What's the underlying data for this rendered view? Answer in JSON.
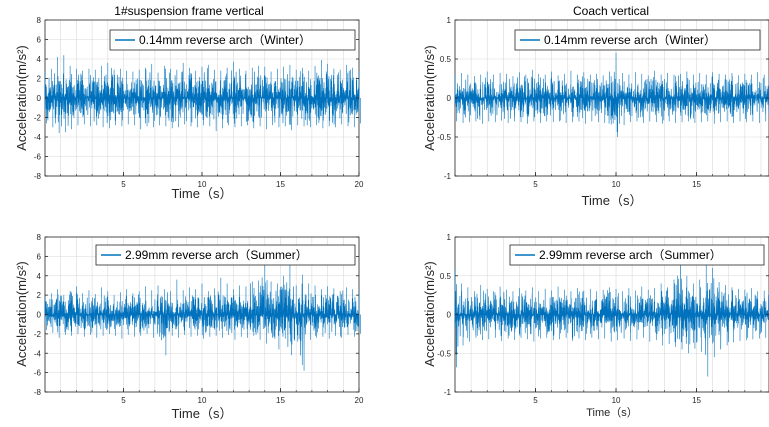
{
  "colors": {
    "signal": "#0072BD",
    "axes": "#262626",
    "grid": "#d9d9d9",
    "background": "#ffffff"
  },
  "chart_data": [
    {
      "type": "line",
      "title": "1#suspension frame vertical",
      "xlabel": "Time（s）",
      "ylabel": "Acceleration(m/s²)",
      "xlim": [
        0,
        20
      ],
      "ylim": [
        -8,
        8
      ],
      "xticks": [
        5,
        10,
        15,
        20
      ],
      "yticks": [
        -8,
        -6,
        -4,
        -2,
        0,
        2,
        4,
        6,
        8
      ],
      "grid": true,
      "legend_position": "top-right",
      "series": [
        {
          "name": "0.14mm reverse arch（Winter）",
          "x": [
            0.0,
            0.4,
            0.8,
            1.2,
            1.6,
            2.0,
            2.4,
            2.8,
            3.2,
            3.6,
            4.0,
            4.4,
            4.8,
            5.2,
            5.6,
            6.0,
            6.4,
            6.8,
            7.2,
            7.6,
            8.0,
            8.4,
            8.8,
            9.2,
            9.6,
            10.0,
            10.4,
            10.8,
            11.2,
            11.6,
            12.0,
            12.4,
            12.8,
            13.2,
            13.6,
            14.0,
            14.4,
            14.8,
            15.2,
            15.6,
            16.0,
            16.4,
            16.8,
            17.2,
            17.6,
            18.0,
            18.4,
            18.8,
            19.2,
            19.6,
            20.0
          ],
          "ymax": [
            2.6,
            3.0,
            4.2,
            4.4,
            3.3,
            3.0,
            2.8,
            3.0,
            2.9,
            3.3,
            3.6,
            2.9,
            3.0,
            2.8,
            2.7,
            2.9,
            3.1,
            3.5,
            2.6,
            3.3,
            3.0,
            2.9,
            3.6,
            3.1,
            2.8,
            3.2,
            3.4,
            2.9,
            2.8,
            3.1,
            3.7,
            3.0,
            2.8,
            3.1,
            3.3,
            3.2,
            2.7,
            3.0,
            3.2,
            3.4,
            2.9,
            3.1,
            2.8,
            3.3,
            3.9,
            3.5,
            3.0,
            2.9,
            3.4,
            3.1,
            2.7
          ],
          "ymin": [
            -2.6,
            -3.0,
            -3.6,
            -3.5,
            -3.2,
            -2.8,
            -2.7,
            -2.9,
            -2.8,
            -3.0,
            -3.1,
            -2.8,
            -2.9,
            -2.7,
            -2.8,
            -3.2,
            -2.9,
            -3.0,
            -2.8,
            -2.9,
            -3.1,
            -3.0,
            -2.7,
            -2.9,
            -3.0,
            -2.8,
            -2.9,
            -3.4,
            -3.1,
            -2.8,
            -3.0,
            -2.9,
            -2.8,
            -3.1,
            -2.9,
            -3.2,
            -2.8,
            -3.0,
            -2.9,
            -3.3,
            -2.8,
            -2.9,
            -3.0,
            -2.8,
            -3.1,
            -2.9,
            -3.0,
            -2.7,
            -2.9,
            -3.0,
            -2.6
          ]
        }
      ]
    },
    {
      "type": "line",
      "title": "Coach vertical",
      "xlabel": "Time（s）",
      "ylabel": "Acceleration(m/s²)",
      "xlim": [
        0,
        19.5
      ],
      "ylim": [
        -1,
        1
      ],
      "xticks": [
        5,
        10,
        15
      ],
      "yticks": [
        -1,
        -0.5,
        0,
        0.5,
        1
      ],
      "grid": true,
      "legend_position": "top-right",
      "series": [
        {
          "name": "0.14mm reverse arch（Winter）",
          "x": [
            0.0,
            0.4,
            0.8,
            1.2,
            1.6,
            2.0,
            2.4,
            2.8,
            3.2,
            3.6,
            4.0,
            4.4,
            4.8,
            5.2,
            5.6,
            6.0,
            6.4,
            6.8,
            7.2,
            7.6,
            8.0,
            8.4,
            8.8,
            9.2,
            9.6,
            10.0,
            10.4,
            10.8,
            11.2,
            11.6,
            12.0,
            12.4,
            12.8,
            13.2,
            13.6,
            14.0,
            14.4,
            14.8,
            15.2,
            15.6,
            16.0,
            16.4,
            16.8,
            17.2,
            17.6,
            18.0,
            18.4,
            18.8,
            19.2,
            19.5
          ],
          "ymax": [
            0.3,
            0.32,
            0.3,
            0.28,
            0.3,
            0.34,
            0.3,
            0.32,
            0.31,
            0.28,
            0.33,
            0.3,
            0.36,
            0.31,
            0.3,
            0.34,
            0.29,
            0.31,
            0.35,
            0.3,
            0.33,
            0.3,
            0.31,
            0.29,
            0.34,
            0.58,
            0.32,
            0.3,
            0.33,
            0.31,
            0.29,
            0.35,
            0.3,
            0.32,
            0.3,
            0.31,
            0.34,
            0.3,
            0.32,
            0.3,
            0.33,
            0.31,
            0.3,
            0.32,
            0.29,
            0.31,
            0.3,
            0.33,
            0.3,
            0.28
          ],
          "ymin": [
            -0.3,
            -0.32,
            -0.31,
            -0.3,
            -0.33,
            -0.3,
            -0.31,
            -0.29,
            -0.32,
            -0.3,
            -0.31,
            -0.33,
            -0.3,
            -0.32,
            -0.3,
            -0.31,
            -0.3,
            -0.32,
            -0.31,
            -0.3,
            -0.33,
            -0.3,
            -0.31,
            -0.32,
            -0.34,
            -0.5,
            -0.35,
            -0.31,
            -0.3,
            -0.32,
            -0.3,
            -0.31,
            -0.33,
            -0.3,
            -0.32,
            -0.31,
            -0.3,
            -0.32,
            -0.31,
            -0.3,
            -0.33,
            -0.31,
            -0.3,
            -0.32,
            -0.3,
            -0.31,
            -0.3,
            -0.32,
            -0.3,
            -0.29
          ]
        }
      ]
    },
    {
      "type": "line",
      "title": "",
      "xlabel": "Time（s）",
      "ylabel": "Acceleration(m/s²)",
      "xlim": [
        0,
        20
      ],
      "ylim": [
        -8,
        8
      ],
      "xticks": [
        5,
        10,
        15,
        20
      ],
      "yticks": [
        -8,
        -6,
        -4,
        -2,
        0,
        2,
        4,
        6,
        8
      ],
      "grid": true,
      "legend_position": "top-right",
      "series": [
        {
          "name": "2.99mm reverse arch（Summer）",
          "x": [
            0.0,
            0.4,
            0.8,
            1.2,
            1.6,
            2.0,
            2.4,
            2.8,
            3.2,
            3.6,
            4.0,
            4.4,
            4.8,
            5.2,
            5.6,
            6.0,
            6.4,
            6.8,
            7.2,
            7.6,
            8.0,
            8.4,
            8.8,
            9.2,
            9.6,
            10.0,
            10.4,
            10.8,
            11.2,
            11.6,
            12.0,
            12.4,
            12.8,
            13.2,
            13.6,
            14.0,
            14.4,
            14.8,
            15.2,
            15.6,
            16.0,
            16.4,
            16.8,
            17.2,
            17.6,
            18.0,
            18.4,
            18.8,
            19.2,
            19.6,
            20.0
          ],
          "ymax": [
            1.8,
            2.2,
            2.6,
            2.0,
            2.4,
            2.9,
            2.2,
            2.5,
            2.1,
            2.8,
            2.4,
            2.0,
            2.3,
            2.6,
            2.2,
            2.4,
            2.9,
            2.5,
            3.0,
            2.6,
            2.4,
            3.6,
            2.5,
            2.8,
            2.6,
            3.2,
            2.4,
            2.7,
            3.8,
            3.2,
            2.6,
            3.0,
            2.9,
            3.4,
            3.5,
            5.5,
            3.4,
            3.2,
            4.0,
            5.3,
            3.0,
            4.1,
            3.2,
            3.0,
            2.6,
            2.9,
            2.7,
            2.4,
            2.8,
            2.6,
            2.3
          ],
          "ymin": [
            -1.6,
            -1.9,
            -2.4,
            -2.1,
            -2.2,
            -2.0,
            -2.3,
            -2.1,
            -2.4,
            -2.2,
            -2.0,
            -2.2,
            -2.5,
            -2.1,
            -2.3,
            -2.2,
            -2.0,
            -2.4,
            -2.3,
            -4.2,
            -2.2,
            -2.4,
            -2.1,
            -2.3,
            -2.2,
            -2.5,
            -2.3,
            -2.2,
            -2.4,
            -2.1,
            -2.6,
            -2.3,
            -2.4,
            -2.2,
            -2.6,
            -3.0,
            -2.4,
            -3.6,
            -2.5,
            -4.2,
            -2.8,
            -5.8,
            -2.6,
            -2.4,
            -2.3,
            -2.5,
            -2.2,
            -2.4,
            -2.1,
            -2.3,
            -2.0
          ]
        }
      ]
    },
    {
      "type": "line",
      "title": "",
      "xlabel": "Time（s）",
      "ylabel": "Acceleration(m/s²)",
      "xlim": [
        0,
        19.5
      ],
      "ylim": [
        -1,
        1
      ],
      "xticks": [
        5,
        10,
        15
      ],
      "yticks": [
        -1,
        -0.5,
        0,
        0.5,
        1
      ],
      "grid": true,
      "legend_position": "top-right",
      "series": [
        {
          "name": "2.99mm reverse arch（Summer）",
          "x": [
            0.0,
            0.4,
            0.8,
            1.2,
            1.6,
            2.0,
            2.4,
            2.8,
            3.2,
            3.6,
            4.0,
            4.4,
            4.8,
            5.2,
            5.6,
            6.0,
            6.4,
            6.8,
            7.2,
            7.6,
            8.0,
            8.4,
            8.8,
            9.2,
            9.6,
            10.0,
            10.4,
            10.8,
            11.2,
            11.6,
            12.0,
            12.4,
            12.8,
            13.2,
            13.6,
            14.0,
            14.4,
            14.8,
            15.2,
            15.6,
            16.0,
            16.4,
            16.8,
            17.2,
            17.6,
            18.0,
            18.4,
            18.8,
            19.2,
            19.5
          ],
          "ymax": [
            0.6,
            0.4,
            0.35,
            0.3,
            0.38,
            0.33,
            0.3,
            0.36,
            0.32,
            0.3,
            0.34,
            0.31,
            0.35,
            0.3,
            0.33,
            0.31,
            0.36,
            0.32,
            0.3,
            0.34,
            0.31,
            0.33,
            0.3,
            0.32,
            0.35,
            0.33,
            0.3,
            0.34,
            0.31,
            0.36,
            0.32,
            0.34,
            0.4,
            0.35,
            0.45,
            0.65,
            0.5,
            0.4,
            0.45,
            0.65,
            0.6,
            0.42,
            0.38,
            0.35,
            0.33,
            0.32,
            0.34,
            0.3,
            0.31,
            0.3
          ],
          "ymin": [
            -0.68,
            -0.4,
            -0.35,
            -0.3,
            -0.33,
            -0.32,
            -0.3,
            -0.34,
            -0.31,
            -0.33,
            -0.3,
            -0.32,
            -0.35,
            -0.31,
            -0.3,
            -0.33,
            -0.32,
            -0.3,
            -0.34,
            -0.31,
            -0.33,
            -0.3,
            -0.32,
            -0.31,
            -0.35,
            -0.33,
            -0.31,
            -0.34,
            -0.32,
            -0.3,
            -0.35,
            -0.33,
            -0.4,
            -0.38,
            -0.42,
            -0.45,
            -0.5,
            -0.44,
            -0.48,
            -0.8,
            -0.55,
            -0.45,
            -0.4,
            -0.36,
            -0.34,
            -0.33,
            -0.32,
            -0.31,
            -0.3,
            -0.3
          ]
        }
      ]
    }
  ]
}
